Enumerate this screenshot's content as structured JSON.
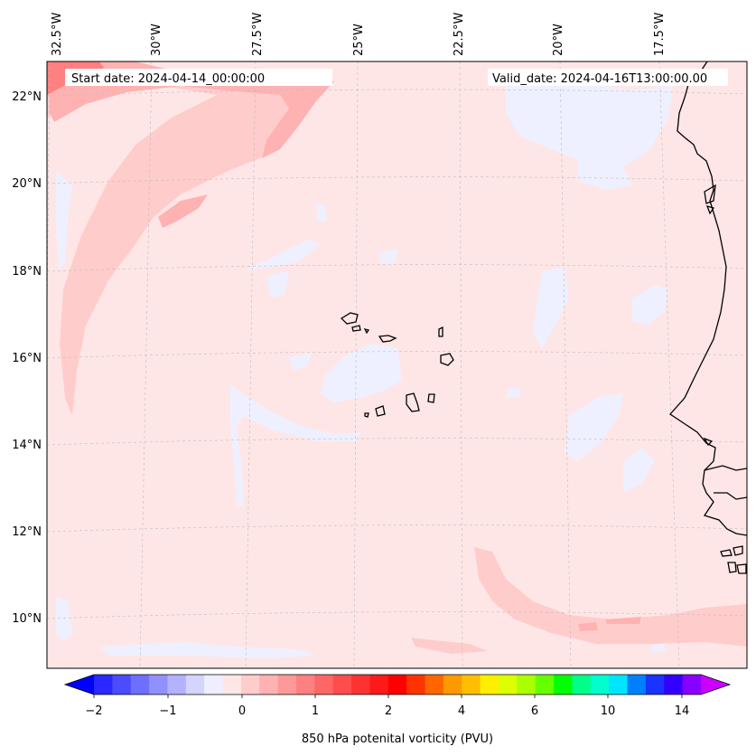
{
  "map": {
    "start_date": "Start date: 2024-04-14_00:00:00",
    "valid_date": "Valid_date: 2024-04-16T13:00:00.00",
    "lon_labels": [
      "32.5°W",
      "30°W",
      "27.5°W",
      "25°W",
      "22.5°W",
      "20°W",
      "17.5°W"
    ],
    "lat_labels": [
      "22°N",
      "20°N",
      "18°N",
      "16°N",
      "14°N",
      "12°N",
      "10°N"
    ],
    "colors": {
      "background": "#ffe6e6",
      "light_pink": "#ffcccc",
      "pink": "#ffb2b2",
      "rose": "#ff8080",
      "pale_blue": "#eef0ff",
      "coast": "#000000"
    }
  },
  "colorbar": {
    "label": "850 hPa potenital vorticity (PVU)",
    "ticks": [
      "−2",
      "−1",
      "0",
      "1",
      "2",
      "4",
      "6",
      "10",
      "14"
    ],
    "colors": [
      "#0000ff",
      "#2828ff",
      "#4b4bff",
      "#6e6eff",
      "#9090ff",
      "#b2b2ff",
      "#d4d4ff",
      "#eeeeff",
      "#ffe6e6",
      "#ffcccc",
      "#ffb2b2",
      "#ff9999",
      "#ff8080",
      "#ff6666",
      "#ff4c4c",
      "#ff3232",
      "#ff1a1a",
      "#ff0000",
      "#ff3300",
      "#ff6600",
      "#ff9900",
      "#ffbf00",
      "#ffee00",
      "#ddff00",
      "#aaff00",
      "#66ff00",
      "#00ff00",
      "#00ff88",
      "#00ffcc",
      "#00e5ff",
      "#0080ff",
      "#1a33ff",
      "#3300ff",
      "#8800ff",
      "#cc00ff"
    ]
  }
}
